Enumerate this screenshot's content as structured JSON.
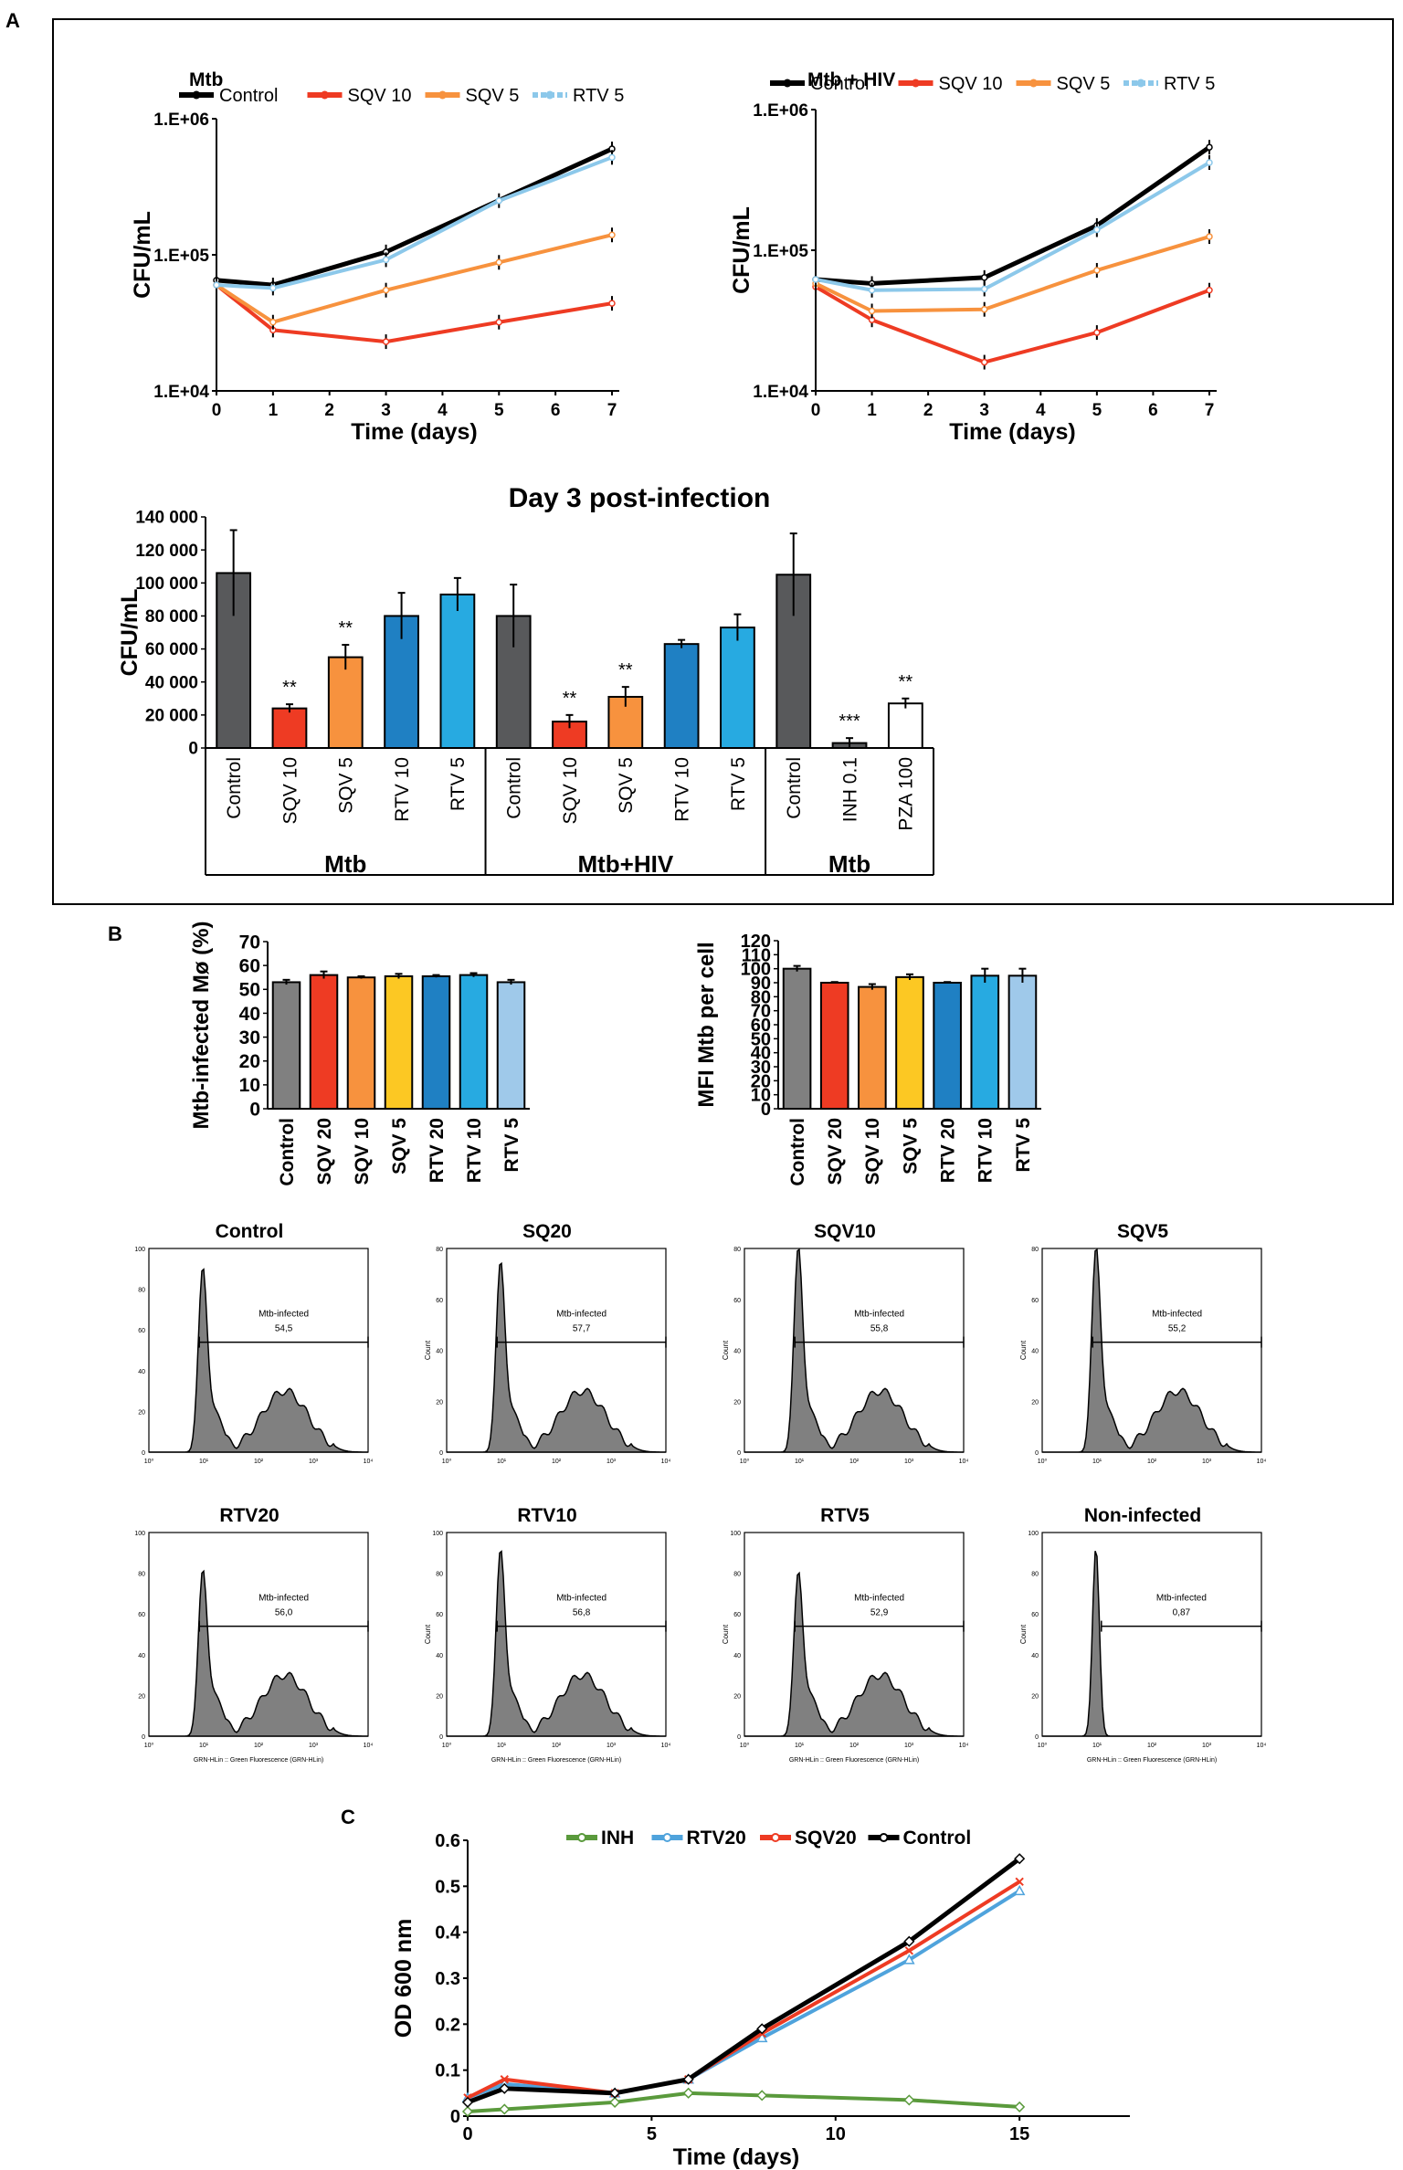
{
  "colors": {
    "Control": "#000000",
    "SQV 10": "#ee3b23",
    "SQV 5": "#f7923e",
    "RTV 5": "#8cc8ea",
    "bar_dark": "#58595b",
    "bar_red": "#ee3b23",
    "bar_orange": "#f7923e",
    "bar_blue_dark": "#1f80c3",
    "bar_blue_light": "#27aae1",
    "INH": "#5a9a3c",
    "RTV20": "#4fa3dc",
    "SQV20": "#ee3b23",
    "hist_fill": "#808080"
  },
  "panel_labels": {
    "a": "A",
    "b": "B",
    "c": "C"
  },
  "chart_data": [
    {
      "id": "a-mtb",
      "type": "line",
      "title": "Mtb",
      "xlabel": "Time (days)",
      "ylabel": "CFU/mL",
      "yscale": "log",
      "ylim": [
        10000,
        1000000
      ],
      "xlim": [
        0,
        7
      ],
      "xticks": [
        "0",
        "1",
        "2",
        "3",
        "4",
        "5",
        "6",
        "7"
      ],
      "yticks": [
        "1.E+04",
        "1.E+05",
        "1.E+06"
      ],
      "legend": [
        "Control",
        "SQV 10",
        "SQV 5",
        "RTV 5"
      ],
      "series": [
        {
          "name": "Control",
          "x": [
            0,
            1,
            3,
            7
          ],
          "y": [
            65000,
            60000,
            105000,
            600000
          ]
        },
        {
          "name": "SQV 10",
          "x": [
            0,
            1,
            3,
            5,
            7
          ],
          "y": [
            60000,
            28000,
            23000,
            32000,
            44000
          ]
        },
        {
          "name": "SQV 5",
          "x": [
            0,
            1,
            3,
            5,
            7
          ],
          "y": [
            60000,
            32000,
            55000,
            88000,
            140000
          ]
        },
        {
          "name": "RTV 5",
          "x": [
            0,
            1,
            3,
            5,
            7
          ],
          "y": [
            60000,
            57000,
            92000,
            250000,
            520000
          ]
        }
      ]
    },
    {
      "id": "a-mtbhiv",
      "type": "line",
      "title": "Mtb + HIV",
      "xlabel": "Time (days)",
      "ylabel": "CFU/mL",
      "yscale": "log",
      "ylim": [
        10000,
        1000000
      ],
      "xlim": [
        0,
        7
      ],
      "xticks": [
        "0",
        "1",
        "2",
        "3",
        "4",
        "5",
        "6",
        "7"
      ],
      "yticks": [
        "1.E+04",
        "1.E+05",
        "1.E+06"
      ],
      "legend": [
        "Control",
        "SQV 10",
        "SQV 5",
        "RTV 5"
      ],
      "series": [
        {
          "name": "Control",
          "x": [
            0,
            1,
            3,
            5,
            7
          ],
          "y": [
            62000,
            58000,
            64000,
            150000,
            540000
          ]
        },
        {
          "name": "SQV 10",
          "x": [
            0,
            1,
            3,
            5,
            7
          ],
          "y": [
            55000,
            32000,
            16000,
            26000,
            52000
          ]
        },
        {
          "name": "SQV 5",
          "x": [
            0,
            1,
            3,
            5,
            7
          ],
          "y": [
            58000,
            37000,
            38000,
            72000,
            125000
          ]
        },
        {
          "name": "RTV 5",
          "x": [
            0,
            1,
            3,
            5,
            7
          ],
          "y": [
            62000,
            52000,
            53000,
            140000,
            420000
          ]
        }
      ]
    },
    {
      "id": "a-bar",
      "type": "bar",
      "title": "Day 3 post-infection",
      "ylabel": "CFU/mL",
      "ylim": [
        0,
        140000
      ],
      "yticks": [
        "0",
        "20 000",
        "40 000",
        "60 000",
        "80 000",
        "100 000",
        "120 000",
        "140 000"
      ],
      "categories": [
        "Control",
        "SQV 10",
        "SQV 5",
        "RTV 10",
        "RTV 5",
        "Control",
        "SQV 10",
        "SQV 5",
        "RTV 10",
        "RTV 5",
        "Control",
        "INH 0.1",
        "PZA 100"
      ],
      "values": [
        106000,
        24000,
        55000,
        80000,
        93000,
        80000,
        16000,
        31000,
        63000,
        73000,
        105000,
        3000,
        27000
      ],
      "errors": [
        26000,
        2500,
        7500,
        14000,
        10000,
        19000,
        4000,
        6000,
        2500,
        8000,
        25000,
        3000,
        3000
      ],
      "annotations": [
        "",
        "**",
        "**",
        "",
        "",
        "",
        "**",
        "**",
        "",
        "",
        "",
        "***",
        "**"
      ],
      "bar_colors": [
        "bar_dark",
        "bar_red",
        "bar_orange",
        "bar_blue_dark",
        "bar_blue_light",
        "bar_dark",
        "bar_red",
        "bar_orange",
        "bar_blue_dark",
        "bar_blue_light",
        "bar_dark",
        "bar_dark",
        "white"
      ],
      "groups": [
        "Mtb",
        "Mtb+HIV",
        "Mtb"
      ]
    },
    {
      "id": "b-pct",
      "type": "bar",
      "ylabel": "Mtb-infected Mø (%)",
      "ylim": [
        0,
        70
      ],
      "yticks": [
        "0",
        "10",
        "20",
        "30",
        "40",
        "50",
        "60",
        "70"
      ],
      "categories": [
        "Control",
        "SQV 20",
        "SQV 10",
        "SQV 5",
        "RTV 20",
        "RTV 10",
        "RTV 5"
      ],
      "values": [
        53,
        56,
        55,
        55.5,
        55.5,
        56,
        53
      ],
      "errors": [
        1,
        1.5,
        0.5,
        1,
        0.5,
        0.8,
        1
      ],
      "bar_colors": [
        "#808080",
        "#ee3b23",
        "#f7923e",
        "#fcc823",
        "#1f80c3",
        "#27aae1",
        "#9fc9ea"
      ]
    },
    {
      "id": "b-mfi",
      "type": "bar",
      "ylabel": "MFI Mtb per cell",
      "ylim": [
        0,
        120
      ],
      "yticks": [
        "0",
        "10",
        "20",
        "30",
        "40",
        "50",
        "60",
        "70",
        "80",
        "90",
        "100",
        "110",
        "120"
      ],
      "categories": [
        "Control",
        "SQV 20",
        "SQV 10",
        "SQV 5",
        "RTV 20",
        "RTV 10",
        "RTV 5"
      ],
      "values": [
        100,
        90,
        87,
        94,
        90,
        95,
        95
      ],
      "errors": [
        2,
        0.5,
        2,
        2,
        0.5,
        5,
        5
      ],
      "bar_colors": [
        "#808080",
        "#ee3b23",
        "#f7923e",
        "#fcc823",
        "#1f80c3",
        "#27aae1",
        "#9fc9ea"
      ]
    },
    {
      "id": "c-od",
      "type": "line",
      "xlabel": "Time (days)",
      "ylabel": "OD 600 nm",
      "xlim": [
        0,
        18
      ],
      "ylim": [
        0,
        0.6
      ],
      "xticks": [
        "0",
        "5",
        "10",
        "15"
      ],
      "yticks": [
        "0",
        "0.1",
        "0.2",
        "0.3",
        "0.4",
        "0.5",
        "0.6"
      ],
      "legend": [
        "INH",
        "RTV20",
        "SQV20",
        "Control"
      ],
      "series": [
        {
          "name": "INH",
          "x": [
            0,
            1,
            4,
            6,
            8,
            12,
            15
          ],
          "y": [
            0.01,
            0.015,
            0.03,
            0.05,
            0.045,
            0.035,
            0.02
          ]
        },
        {
          "name": "RTV20",
          "x": [
            0,
            1,
            4,
            6,
            8,
            12,
            15
          ],
          "y": [
            0.04,
            0.07,
            0.05,
            0.08,
            0.17,
            0.34,
            0.49
          ]
        },
        {
          "name": "SQV20",
          "x": [
            0,
            1,
            4,
            6,
            8,
            12,
            15
          ],
          "y": [
            0.04,
            0.08,
            0.05,
            0.08,
            0.18,
            0.36,
            0.51
          ]
        },
        {
          "name": "Control",
          "x": [
            0,
            1,
            4,
            6,
            8,
            12,
            15
          ],
          "y": [
            0.03,
            0.06,
            0.05,
            0.08,
            0.19,
            0.38,
            0.56
          ]
        }
      ]
    }
  ],
  "flow": {
    "gate_label": "Mtb-infected",
    "y_axis_label": "Count",
    "x_axis_label": "GRN-HLin :: Green Fluorescence (GRN-HLin)",
    "y_ticks": [
      "0",
      "20",
      "40",
      "60",
      "80",
      "100"
    ],
    "x_ticks": [
      "10⁰",
      "10¹",
      "10²",
      "10³",
      "10⁴"
    ],
    "panels": [
      {
        "title": "Control",
        "value": "54,5",
        "peak": 0.85,
        "ymax": 100
      },
      {
        "title": "SQ20",
        "value": "57,7",
        "peak": 0.88,
        "ymax": 80
      },
      {
        "title": "SQV10",
        "value": "55,8",
        "peak": 0.95,
        "ymax": 80
      },
      {
        "title": "SQV5",
        "value": "55,2",
        "peak": 0.95,
        "ymax": 80
      },
      {
        "title": "RTV20",
        "value": "56,0",
        "peak": 0.76,
        "ymax": 100
      },
      {
        "title": "RTV10",
        "value": "56,8",
        "peak": 0.86,
        "ymax": 100
      },
      {
        "title": "RTV5",
        "value": "52,9",
        "peak": 0.75,
        "ymax": 100
      },
      {
        "title": "Non-infected",
        "value": "0,87",
        "peak": 0.93,
        "ymax": 100
      }
    ]
  }
}
